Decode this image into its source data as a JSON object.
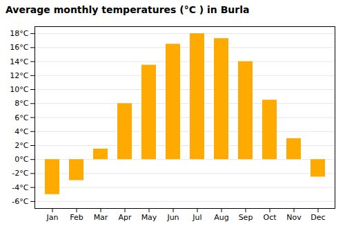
{
  "chart_data": {
    "type": "bar",
    "title": "Average monthly temperatures (°C ) in Burla",
    "categories": [
      "Jan",
      "Feb",
      "Mar",
      "Apr",
      "May",
      "Jun",
      "Jul",
      "Aug",
      "Sep",
      "Oct",
      "Nov",
      "Dec"
    ],
    "values": [
      -5.0,
      -3.0,
      1.5,
      8.0,
      13.5,
      16.5,
      18.0,
      17.3,
      14.0,
      8.5,
      3.0,
      -2.5
    ],
    "color": "#FFAA00",
    "ylim": [
      -7,
      19
    ],
    "yticks": [
      {
        "value": -6,
        "label": "-6°C"
      },
      {
        "value": -4,
        "label": "-4°C"
      },
      {
        "value": -2,
        "label": "-2°C"
      },
      {
        "value": 0,
        "label": "0°C"
      },
      {
        "value": 2,
        "label": "2°C"
      },
      {
        "value": 4,
        "label": "4°C"
      },
      {
        "value": 6,
        "label": "6°C"
      },
      {
        "value": 8,
        "label": "8°C"
      },
      {
        "value": 10,
        "label": "10°C"
      },
      {
        "value": 12,
        "label": "12°C"
      },
      {
        "value": 14,
        "label": "14°C"
      },
      {
        "value": 16,
        "label": "16°C"
      },
      {
        "value": 18,
        "label": "18°C"
      }
    ],
    "grid": true
  }
}
